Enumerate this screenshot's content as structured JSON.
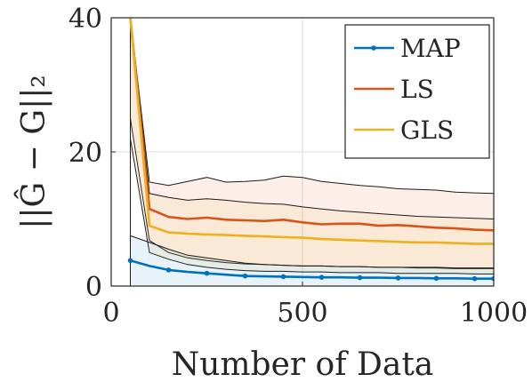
{
  "chart_data": {
    "type": "line",
    "xlabel": "Number of Data",
    "ylabel": "||Ĝ − G||₂",
    "xlim": [
      0,
      1000
    ],
    "ylim": [
      0,
      40
    ],
    "x_ticks": [
      "0",
      "500",
      "1000"
    ],
    "y_ticks": [
      "0",
      "20",
      "40"
    ],
    "grid": true,
    "legend_position": "top-right",
    "x": [
      50,
      100,
      150,
      200,
      250,
      300,
      350,
      400,
      450,
      500,
      550,
      600,
      650,
      700,
      750,
      800,
      850,
      900,
      950,
      1000
    ],
    "series": [
      {
        "name": "MAP",
        "color": "#0072BD",
        "marker": "dot",
        "values": [
          3.8,
          3.0,
          2.4,
          2.1,
          1.9,
          1.7,
          1.5,
          1.45,
          1.4,
          1.35,
          1.3,
          1.3,
          1.25,
          1.25,
          1.2,
          1.2,
          1.15,
          1.15,
          1.1,
          1.1
        ],
        "band_upper": [
          7.5,
          6.5,
          5.5,
          4.6,
          4.2,
          3.8,
          3.4,
          3.2,
          3.1,
          3.0,
          3.0,
          2.9,
          2.9,
          2.8,
          2.8,
          2.8,
          2.8,
          2.7,
          2.7,
          2.7
        ],
        "band_lower": [
          0,
          0,
          0,
          0,
          0,
          0,
          0,
          0,
          0,
          0,
          0,
          0,
          0,
          0,
          0,
          0,
          0,
          0,
          0,
          0
        ]
      },
      {
        "name": "LS",
        "color": "#D95319",
        "values": [
          40,
          11.5,
          10.3,
          10.0,
          10.2,
          9.9,
          9.8,
          9.7,
          9.9,
          9.5,
          9.2,
          9.3,
          9.3,
          9.0,
          9.1,
          8.9,
          8.7,
          8.6,
          8.4,
          8.3
        ],
        "band_upper": [
          40,
          15.5,
          15.0,
          15.6,
          16.2,
          15.5,
          15.6,
          15.8,
          16.4,
          16.2,
          15.6,
          15.3,
          15.0,
          14.8,
          14.5,
          14.4,
          14.3,
          14.0,
          13.9,
          13.8
        ],
        "band_lower": [
          25,
          6.8,
          5.0,
          4.2,
          3.8,
          3.5,
          3.3,
          3.2,
          3.1,
          3.0,
          3.0,
          2.9,
          2.9,
          2.8,
          2.8,
          2.7,
          2.7,
          2.6,
          2.6,
          2.6
        ]
      },
      {
        "name": "GLS",
        "color": "#EDB120",
        "values": [
          40,
          9.0,
          8.0,
          7.8,
          7.7,
          7.6,
          7.5,
          7.4,
          7.3,
          7.2,
          7.0,
          6.9,
          6.8,
          6.7,
          6.6,
          6.5,
          6.5,
          6.4,
          6.3,
          6.3
        ],
        "band_upper": [
          40,
          13.8,
          13.2,
          12.8,
          13.0,
          12.8,
          12.5,
          12.3,
          12.2,
          11.8,
          11.5,
          11.2,
          11.0,
          10.8,
          10.6,
          10.4,
          10.3,
          10.2,
          10.1,
          10.0
        ],
        "band_lower": [
          22,
          5.0,
          4.0,
          3.2,
          2.8,
          2.5,
          2.3,
          2.2,
          2.2,
          2.1,
          2.1,
          2.0,
          2.0,
          2.0,
          1.9,
          1.9,
          1.9,
          1.9,
          1.8,
          1.8
        ]
      }
    ]
  }
}
